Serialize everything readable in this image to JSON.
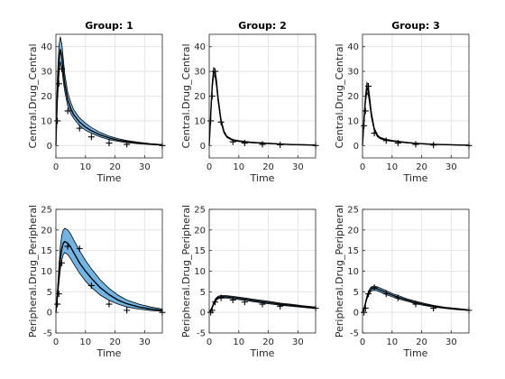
{
  "figure": {
    "background": "#ffffff",
    "band_color": "#6fb6e6",
    "line_color": "#000000"
  },
  "chart_data": [
    {
      "type": "line",
      "title": "Group: 1",
      "xlabel": "Time",
      "ylabel": "Central.Drug_Central",
      "xlim": [
        0,
        36
      ],
      "ylim": [
        -5,
        45
      ],
      "xticks": [
        0,
        10,
        20,
        30
      ],
      "yticks": [
        0,
        10,
        20,
        30,
        40
      ],
      "grid": true,
      "series": [
        {
          "role": "median",
          "x": [
            0,
            0.5,
            1,
            1.5,
            2,
            2.5,
            3,
            4,
            5,
            6,
            8,
            10,
            12,
            15,
            18,
            21,
            24,
            28,
            32,
            36
          ],
          "y": [
            0,
            22,
            34,
            39,
            36,
            30,
            25,
            18.5,
            15,
            12.5,
            9.5,
            7.5,
            6,
            4.3,
            3.1,
            2.2,
            1.6,
            1,
            0.6,
            0.3
          ]
        },
        {
          "role": "lower",
          "x": [
            0,
            0.5,
            1,
            1.5,
            2,
            2.5,
            3,
            4,
            5,
            6,
            8,
            10,
            12,
            15,
            18,
            21,
            24,
            28,
            32,
            36
          ],
          "y": [
            0,
            17,
            28,
            34,
            31,
            26,
            22,
            16,
            13,
            11,
            8,
            6.2,
            5,
            3.5,
            2.4,
            1.7,
            1.2,
            0.7,
            0.4,
            0.2
          ]
        },
        {
          "role": "upper",
          "x": [
            0,
            0.5,
            1,
            1.5,
            2,
            2.5,
            3,
            4,
            5,
            6,
            8,
            10,
            12,
            15,
            18,
            21,
            24,
            28,
            32,
            36
          ],
          "y": [
            0,
            27,
            40,
            44,
            41,
            35,
            29,
            21.5,
            17.5,
            14.5,
            11.2,
            9,
            7.3,
            5.3,
            3.8,
            2.8,
            2,
            1.3,
            0.8,
            0.4
          ]
        },
        {
          "role": "observed",
          "x": [
            0.5,
            1,
            2,
            4,
            8,
            12,
            18,
            24,
            36
          ],
          "y": [
            10,
            25,
            31,
            14,
            7,
            3.5,
            1,
            0.5,
            0
          ]
        }
      ]
    },
    {
      "type": "line",
      "title": "Group: 2",
      "xlabel": "Time",
      "ylabel": "Central.Drug_Central",
      "xlim": [
        0,
        36
      ],
      "ylim": [
        -5,
        45
      ],
      "xticks": [
        0,
        10,
        20,
        30
      ],
      "yticks": [
        0,
        10,
        20,
        30,
        40
      ],
      "grid": true,
      "series": [
        {
          "role": "median",
          "x": [
            0,
            0.5,
            1,
            1.5,
            2,
            2.5,
            3,
            4,
            5,
            6,
            8,
            10,
            12,
            15,
            18,
            21,
            24,
            28,
            32,
            36
          ],
          "y": [
            0,
            12,
            24,
            30,
            29,
            25,
            19,
            10,
            5.5,
            3.5,
            2.2,
            1.8,
            1.5,
            1.2,
            1,
            0.8,
            0.6,
            0.4,
            0.3,
            0.2
          ]
        },
        {
          "role": "lower",
          "x": [
            0,
            0.5,
            1,
            1.5,
            2,
            2.5,
            3,
            4,
            5,
            6,
            8,
            10,
            12,
            15,
            18,
            21,
            24,
            28,
            32,
            36
          ],
          "y": [
            0,
            11,
            22.5,
            28.5,
            27.5,
            23.5,
            17.8,
            9.2,
            5,
            3.2,
            2,
            1.6,
            1.3,
            1.05,
            0.85,
            0.7,
            0.5,
            0.35,
            0.25,
            0.15
          ]
        },
        {
          "role": "upper",
          "x": [
            0,
            0.5,
            1,
            1.5,
            2,
            2.5,
            3,
            4,
            5,
            6,
            8,
            10,
            12,
            15,
            18,
            21,
            24,
            28,
            32,
            36
          ],
          "y": [
            0,
            13,
            25.5,
            31.5,
            30.5,
            26.5,
            20.2,
            10.8,
            6,
            3.8,
            2.4,
            2,
            1.7,
            1.35,
            1.15,
            0.9,
            0.7,
            0.45,
            0.35,
            0.25
          ]
        },
        {
          "role": "observed",
          "x": [
            0.5,
            1,
            2,
            4,
            8,
            12,
            18,
            24,
            36
          ],
          "y": [
            10,
            20,
            30,
            9.5,
            1.5,
            1,
            0.5,
            0.3,
            0
          ]
        }
      ]
    },
    {
      "type": "line",
      "title": "Group: 3",
      "xlabel": "Time",
      "ylabel": "Central.Drug_Central",
      "xlim": [
        0,
        36
      ],
      "ylim": [
        -5,
        45
      ],
      "xticks": [
        0,
        10,
        20,
        30
      ],
      "yticks": [
        0,
        10,
        20,
        30,
        40
      ],
      "grid": true,
      "series": [
        {
          "role": "median",
          "x": [
            0,
            0.5,
            1,
            1.5,
            2,
            2.5,
            3,
            4,
            5,
            6,
            8,
            10,
            12,
            15,
            18,
            21,
            24,
            28,
            32,
            36
          ],
          "y": [
            0,
            10,
            19,
            23.5,
            22,
            17.5,
            12.5,
            6.5,
            4,
            3,
            2.3,
            1.9,
            1.6,
            1.2,
            0.9,
            0.7,
            0.5,
            0.35,
            0.25,
            0.15
          ]
        },
        {
          "role": "lower",
          "x": [
            0,
            0.5,
            1,
            1.5,
            2,
            2.5,
            3,
            4,
            5,
            6,
            8,
            10,
            12,
            15,
            18,
            21,
            24,
            28,
            32,
            36
          ],
          "y": [
            0,
            9,
            17.5,
            21.5,
            20,
            16,
            11.3,
            5.9,
            3.6,
            2.7,
            2.05,
            1.7,
            1.4,
            1.05,
            0.8,
            0.6,
            0.45,
            0.3,
            0.2,
            0.12
          ]
        },
        {
          "role": "upper",
          "x": [
            0,
            0.5,
            1,
            1.5,
            2,
            2.5,
            3,
            4,
            5,
            6,
            8,
            10,
            12,
            15,
            18,
            21,
            24,
            28,
            32,
            36
          ],
          "y": [
            0,
            11,
            20.5,
            25.5,
            24,
            19,
            13.7,
            7.1,
            4.4,
            3.3,
            2.55,
            2.1,
            1.8,
            1.35,
            1,
            0.8,
            0.55,
            0.4,
            0.3,
            0.18
          ]
        },
        {
          "role": "observed",
          "x": [
            0.5,
            1,
            2,
            4,
            8,
            12,
            18,
            24,
            36
          ],
          "y": [
            8,
            14,
            24,
            5,
            2,
            1,
            0.5,
            0.2,
            0
          ]
        }
      ]
    },
    {
      "type": "line",
      "title": "",
      "xlabel": "Time",
      "ylabel": "Peripheral.Drug_Peripheral",
      "xlim": [
        0,
        36
      ],
      "ylim": [
        -5,
        25
      ],
      "xticks": [
        0,
        10,
        20,
        30
      ],
      "yticks": [
        -5,
        0,
        5,
        10,
        15,
        20,
        25
      ],
      "grid": true,
      "series": [
        {
          "role": "median",
          "x": [
            0,
            0.5,
            1,
            1.5,
            2,
            2.5,
            3,
            4,
            5,
            6,
            8,
            10,
            12,
            15,
            18,
            21,
            24,
            28,
            32,
            36
          ],
          "y": [
            0,
            4,
            9,
            13,
            15.5,
            16.8,
            17.2,
            16.8,
            15.8,
            14.5,
            12,
            10,
            8.3,
            6,
            4.3,
            3,
            2.1,
            1.3,
            0.8,
            0.5
          ]
        },
        {
          "role": "lower",
          "x": [
            0,
            0.5,
            1,
            1.5,
            2,
            2.5,
            3,
            4,
            5,
            6,
            8,
            10,
            12,
            15,
            18,
            21,
            24,
            28,
            32,
            36
          ],
          "y": [
            0,
            3,
            7,
            10.5,
            12.8,
            14,
            14.5,
            14,
            13,
            11.8,
            9.5,
            7.6,
            6.1,
            4.2,
            2.9,
            2,
            1.3,
            0.8,
            0.45,
            0.25
          ]
        },
        {
          "role": "upper",
          "x": [
            0,
            0.5,
            1,
            1.5,
            2,
            2.5,
            3,
            4,
            5,
            6,
            8,
            10,
            12,
            15,
            18,
            21,
            24,
            28,
            32,
            36
          ],
          "y": [
            0,
            5,
            11,
            16,
            18.8,
            20,
            20.4,
            20,
            19,
            17.6,
            15,
            12.6,
            10.6,
            7.9,
            5.8,
            4.2,
            3,
            2,
            1.3,
            0.8
          ]
        },
        {
          "role": "observed",
          "x": [
            0.5,
            1,
            2,
            4,
            8,
            12,
            18,
            24,
            36
          ],
          "y": [
            2,
            4.5,
            12,
            16,
            15.5,
            6.5,
            2,
            0.5,
            0
          ]
        }
      ]
    },
    {
      "type": "line",
      "title": "",
      "xlabel": "Time",
      "ylabel": "Peripheral.Drug_Peripheral",
      "xlim": [
        0,
        36
      ],
      "ylim": [
        -5,
        25
      ],
      "xticks": [
        0,
        10,
        20,
        30
      ],
      "yticks": [
        -5,
        0,
        5,
        10,
        15,
        20,
        25
      ],
      "grid": true,
      "series": [
        {
          "role": "median",
          "x": [
            0,
            0.5,
            1,
            1.5,
            2,
            2.5,
            3,
            4,
            5,
            6,
            8,
            10,
            12,
            15,
            18,
            21,
            24,
            28,
            32,
            36
          ],
          "y": [
            0,
            0.4,
            1.2,
            2.1,
            2.8,
            3.3,
            3.6,
            3.8,
            3.8,
            3.75,
            3.6,
            3.4,
            3.2,
            2.9,
            2.6,
            2.3,
            2,
            1.7,
            1.4,
            1.1
          ]
        },
        {
          "role": "lower",
          "x": [
            0,
            0.5,
            1,
            1.5,
            2,
            2.5,
            3,
            4,
            5,
            6,
            8,
            10,
            12,
            15,
            18,
            21,
            24,
            28,
            32,
            36
          ],
          "y": [
            0,
            0.3,
            1,
            1.8,
            2.5,
            3,
            3.3,
            3.5,
            3.5,
            3.45,
            3.3,
            3.1,
            2.9,
            2.6,
            2.3,
            2,
            1.75,
            1.45,
            1.2,
            0.9
          ]
        },
        {
          "role": "upper",
          "x": [
            0,
            0.5,
            1,
            1.5,
            2,
            2.5,
            3,
            4,
            5,
            6,
            8,
            10,
            12,
            15,
            18,
            21,
            24,
            28,
            32,
            36
          ],
          "y": [
            0,
            0.5,
            1.4,
            2.4,
            3.1,
            3.6,
            3.9,
            4.1,
            4.1,
            4.05,
            3.9,
            3.7,
            3.5,
            3.2,
            2.9,
            2.6,
            2.25,
            1.95,
            1.6,
            1.3
          ]
        },
        {
          "role": "observed",
          "x": [
            0.5,
            1,
            2,
            4,
            8,
            12,
            18,
            24,
            36
          ],
          "y": [
            0,
            0.5,
            2.5,
            3.5,
            3,
            2.5,
            2,
            1.5,
            1
          ]
        }
      ]
    },
    {
      "type": "line",
      "title": "",
      "xlabel": "Time",
      "ylabel": "Peripheral.Drug_Peripheral",
      "xlim": [
        0,
        36
      ],
      "ylim": [
        -5,
        25
      ],
      "xticks": [
        0,
        10,
        20,
        30
      ],
      "yticks": [
        -5,
        0,
        5,
        10,
        15,
        20,
        25
      ],
      "grid": true,
      "series": [
        {
          "role": "median",
          "x": [
            0,
            0.5,
            1,
            1.5,
            2,
            2.5,
            3,
            4,
            5,
            6,
            8,
            10,
            12,
            15,
            18,
            21,
            24,
            28,
            32,
            36
          ],
          "y": [
            0,
            0.8,
            2.2,
            3.6,
            4.6,
            5.3,
            5.7,
            5.9,
            5.7,
            5.4,
            4.8,
            4.2,
            3.7,
            3,
            2.4,
            1.9,
            1.5,
            1.1,
            0.8,
            0.55
          ]
        },
        {
          "role": "lower",
          "x": [
            0,
            0.5,
            1,
            1.5,
            2,
            2.5,
            3,
            4,
            5,
            6,
            8,
            10,
            12,
            15,
            18,
            21,
            24,
            28,
            32,
            36
          ],
          "y": [
            0,
            0.6,
            1.9,
            3.2,
            4.1,
            4.8,
            5.2,
            5.4,
            5.2,
            4.9,
            4.3,
            3.8,
            3.3,
            2.7,
            2.1,
            1.65,
            1.3,
            0.95,
            0.65,
            0.45
          ]
        },
        {
          "role": "upper",
          "x": [
            0,
            0.5,
            1,
            1.5,
            2,
            2.5,
            3,
            4,
            5,
            6,
            8,
            10,
            12,
            15,
            18,
            21,
            24,
            28,
            32,
            36
          ],
          "y": [
            0,
            1,
            2.5,
            4,
            5.1,
            5.8,
            6.2,
            6.4,
            6.2,
            5.9,
            5.3,
            4.6,
            4.1,
            3.3,
            2.7,
            2.15,
            1.7,
            1.25,
            0.95,
            0.65
          ]
        },
        {
          "role": "observed",
          "x": [
            0.5,
            1,
            2,
            4,
            8,
            12,
            18,
            24,
            36
          ],
          "y": [
            0,
            1,
            4.5,
            6,
            4.5,
            3.5,
            2,
            1,
            0.5
          ]
        }
      ]
    }
  ]
}
